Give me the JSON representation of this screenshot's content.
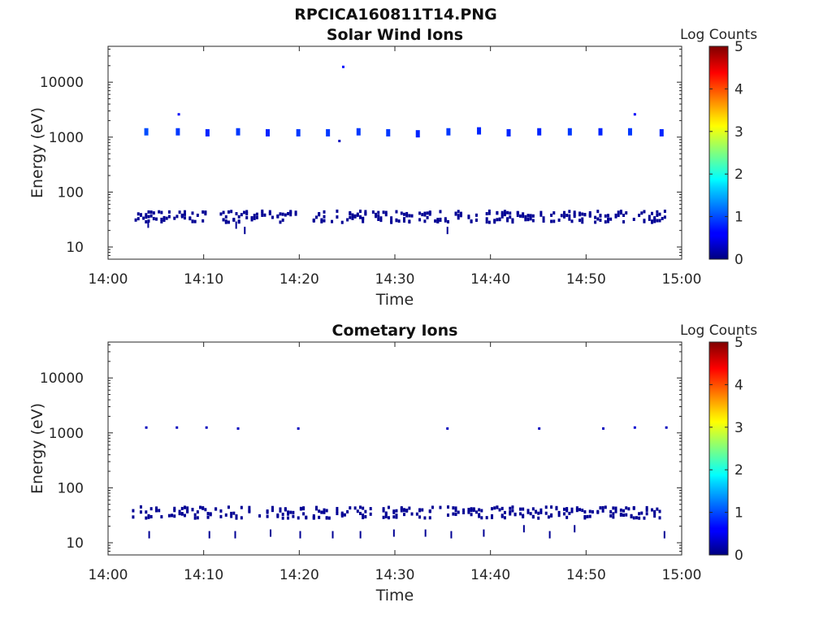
{
  "figure_title": "RPCICA160811T14.PNG",
  "chart_data": [
    {
      "type": "heatmap",
      "title": "Solar Wind Ions",
      "xlabel": "Time",
      "ylabel": "Energy (eV)",
      "y_scale": "log",
      "ylim": [
        6,
        45000
      ],
      "x_ticks": [
        "14:00",
        "14:10",
        "14:20",
        "14:30",
        "14:40",
        "14:50",
        "15:00"
      ],
      "xlim": [
        0,
        60
      ],
      "y_ticks": [
        {
          "value": 10,
          "label": "10"
        },
        {
          "value": 100,
          "label": "100"
        },
        {
          "value": 1000,
          "label": "1000"
        },
        {
          "value": 10000,
          "label": "10000"
        }
      ],
      "colorbar": {
        "label": "Log Counts",
        "min": 0,
        "max": 5,
        "ticks": [
          "0",
          "1",
          "2",
          "3",
          "4",
          "5"
        ],
        "colormap": "jet"
      },
      "low_energy_band": {
        "energy_range_eV": [
          28,
          45
        ],
        "time_range_min": [
          2.5,
          58.3
        ],
        "log_counts": 0.1
      },
      "events": [
        {
          "t": 4.0,
          "e": 1250,
          "v": 1.0
        },
        {
          "t": 7.3,
          "e": 1250,
          "v": 0.9
        },
        {
          "t": 10.4,
          "e": 1200,
          "v": 0.8
        },
        {
          "t": 13.6,
          "e": 1250,
          "v": 0.9
        },
        {
          "t": 16.7,
          "e": 1200,
          "v": 0.8
        },
        {
          "t": 19.9,
          "e": 1200,
          "v": 0.9
        },
        {
          "t": 23.0,
          "e": 1200,
          "v": 0.9
        },
        {
          "t": 26.2,
          "e": 1250,
          "v": 0.9
        },
        {
          "t": 29.3,
          "e": 1200,
          "v": 0.9
        },
        {
          "t": 32.4,
          "e": 1150,
          "v": 0.8
        },
        {
          "t": 35.6,
          "e": 1250,
          "v": 0.9
        },
        {
          "t": 38.8,
          "e": 1300,
          "v": 0.8
        },
        {
          "t": 41.9,
          "e": 1200,
          "v": 0.8
        },
        {
          "t": 45.1,
          "e": 1250,
          "v": 0.8
        },
        {
          "t": 48.3,
          "e": 1250,
          "v": 0.9
        },
        {
          "t": 51.5,
          "e": 1250,
          "v": 0.8
        },
        {
          "t": 54.6,
          "e": 1250,
          "v": 0.9
        },
        {
          "t": 57.9,
          "e": 1200,
          "v": 0.8
        },
        {
          "t": 7.4,
          "e": 2600,
          "v": 0.6
        },
        {
          "t": 24.6,
          "e": 19000,
          "v": 0.7
        },
        {
          "t": 24.2,
          "e": 850,
          "v": 0.3
        },
        {
          "t": 55.1,
          "e": 2600,
          "v": 0.6
        },
        {
          "t": 14.3,
          "e": 20,
          "v": 0.1
        },
        {
          "t": 35.5,
          "e": 20,
          "v": 0.1
        },
        {
          "t": 4.2,
          "e": 26,
          "v": 0.1
        },
        {
          "t": 13.4,
          "e": 25,
          "v": 0.1
        }
      ]
    },
    {
      "type": "heatmap",
      "title": "Cometary Ions",
      "xlabel": "Time",
      "ylabel": "Energy (eV)",
      "y_scale": "log",
      "ylim": [
        6,
        45000
      ],
      "x_ticks": [
        "14:00",
        "14:10",
        "14:20",
        "14:30",
        "14:40",
        "14:50",
        "15:00"
      ],
      "xlim": [
        0,
        60
      ],
      "y_ticks": [
        {
          "value": 10,
          "label": "10"
        },
        {
          "value": 100,
          "label": "100"
        },
        {
          "value": 1000,
          "label": "1000"
        },
        {
          "value": 10000,
          "label": "10000"
        }
      ],
      "colorbar": {
        "label": "Log Counts",
        "min": 0,
        "max": 5,
        "ticks": [
          "0",
          "1",
          "2",
          "3",
          "4",
          "5"
        ],
        "colormap": "jet"
      },
      "low_energy_band": {
        "energy_range_eV": [
          28,
          45
        ],
        "time_range_min": [
          2.5,
          58.3
        ],
        "log_counts": 0.1
      },
      "events": [
        {
          "t": 4.0,
          "e": 1250,
          "v": 0.3
        },
        {
          "t": 7.2,
          "e": 1250,
          "v": 0.3
        },
        {
          "t": 10.3,
          "e": 1250,
          "v": 0.3
        },
        {
          "t": 13.6,
          "e": 1200,
          "v": 0.3
        },
        {
          "t": 19.9,
          "e": 1200,
          "v": 0.3
        },
        {
          "t": 35.5,
          "e": 1200,
          "v": 0.3
        },
        {
          "t": 45.1,
          "e": 1200,
          "v": 0.3
        },
        {
          "t": 51.8,
          "e": 1200,
          "v": 0.3
        },
        {
          "t": 55.1,
          "e": 1250,
          "v": 0.4
        },
        {
          "t": 58.4,
          "e": 1250,
          "v": 0.3
        },
        {
          "t": 4.3,
          "e": 14,
          "v": 0.1
        },
        {
          "t": 10.6,
          "e": 14,
          "v": 0.1
        },
        {
          "t": 13.3,
          "e": 14,
          "v": 0.1
        },
        {
          "t": 17.0,
          "e": 15,
          "v": 0.1
        },
        {
          "t": 20.1,
          "e": 14,
          "v": 0.1
        },
        {
          "t": 23.5,
          "e": 14,
          "v": 0.1
        },
        {
          "t": 26.4,
          "e": 14,
          "v": 0.1
        },
        {
          "t": 29.9,
          "e": 15,
          "v": 0.1
        },
        {
          "t": 33.2,
          "e": 15,
          "v": 0.1
        },
        {
          "t": 35.9,
          "e": 14,
          "v": 0.1
        },
        {
          "t": 39.3,
          "e": 15,
          "v": 0.1
        },
        {
          "t": 43.5,
          "e": 18,
          "v": 0.1
        },
        {
          "t": 46.2,
          "e": 14,
          "v": 0.1
        },
        {
          "t": 48.8,
          "e": 18,
          "v": 0.1
        },
        {
          "t": 58.2,
          "e": 14,
          "v": 0.1
        }
      ]
    }
  ]
}
